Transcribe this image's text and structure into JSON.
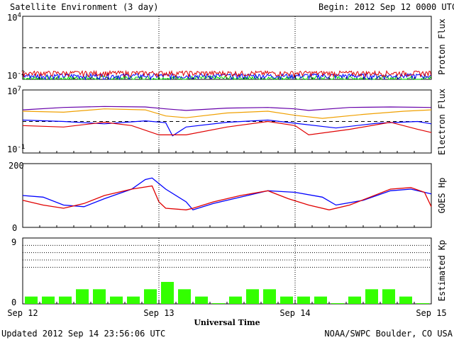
{
  "header": {
    "title": "Satellite Environment (3 day)",
    "begin": "Begin:  2012 Sep 12 0000 UTC"
  },
  "footer": {
    "updated": "Updated 2012 Sep 14 23:56:06 UTC",
    "credit": "NOAA/SWPC Boulder, CO USA"
  },
  "xaxis": {
    "label": "Universal Time",
    "ticks": [
      "Sep 12",
      "Sep 13",
      "Sep 14",
      "Sep 15"
    ]
  },
  "panels": {
    "proton": {
      "ylabel": "Proton Flux",
      "ytick_top": "10",
      "ytick_top_exp": "4",
      "ytick_bottom": "10",
      "ytick_bottom_exp": "-2"
    },
    "electron": {
      "ylabel": "Electron Flux",
      "ytick_top": "10",
      "ytick_top_exp": "7",
      "ytick_bottom": "10",
      "ytick_bottom_exp": "-1"
    },
    "hp": {
      "ylabel": "GOES Hp",
      "ytick_top": "200",
      "ytick_bottom": "0"
    },
    "kp": {
      "ylabel": "Estimated Kp",
      "ytick_top": "9",
      "ytick_bottom": "0"
    }
  },
  "colors": {
    "red": "#e00000",
    "blue": "#0000ff",
    "green": "#00e000",
    "orange": "#f0a000",
    "purple": "#6600aa",
    "kp": "#33ff00"
  },
  "chart_data": [
    {
      "type": "line",
      "title": "Proton Flux",
      "y_scale": "log",
      "ylim": [
        0.01,
        10000
      ],
      "x_range_days": [
        0,
        3
      ],
      "threshold": 10,
      "series": [
        {
          "color": "#e00000",
          "level": 0.04
        },
        {
          "color": "#0000ff",
          "level": 0.022
        },
        {
          "color": "#00e000",
          "level": 0.013
        }
      ]
    },
    {
      "type": "line",
      "title": "Electron Flux",
      "y_scale": "log",
      "ylim": [
        0.1,
        10000000
      ],
      "threshold": 1000,
      "series": [
        {
          "color": "#6600aa",
          "x": [
            0,
            0.3,
            0.6,
            0.9,
            1.05,
            1.2,
            1.5,
            1.8,
            2.0,
            2.1,
            2.4,
            2.7,
            3.0
          ],
          "y": [
            30000,
            60000,
            80000,
            70000,
            40000,
            25000,
            50000,
            60000,
            40000,
            25000,
            60000,
            70000,
            60000
          ]
        },
        {
          "color": "#f0a000",
          "x": [
            0,
            0.3,
            0.6,
            0.9,
            1.05,
            1.2,
            1.5,
            1.8,
            2.0,
            2.2,
            2.5,
            2.8,
            3.0
          ],
          "y": [
            20000,
            15000,
            40000,
            30000,
            5000,
            3000,
            12000,
            20000,
            6000,
            2500,
            8000,
            20000,
            30000
          ]
        },
        {
          "color": "#0000ff",
          "x": [
            0,
            0.3,
            0.6,
            0.9,
            1.05,
            1.1,
            1.2,
            1.5,
            1.8,
            2.0,
            2.3,
            2.6,
            2.9,
            3.0
          ],
          "y": [
            1500,
            1000,
            500,
            1200,
            700,
            15,
            200,
            800,
            1500,
            600,
            150,
            600,
            1000,
            500
          ]
        },
        {
          "color": "#e00000",
          "x": [
            0,
            0.3,
            0.6,
            0.8,
            1.0,
            1.2,
            1.5,
            1.8,
            2.0,
            2.1,
            2.4,
            2.7,
            2.9,
            3.0
          ],
          "y": [
            300,
            200,
            800,
            300,
            20,
            20,
            200,
            1000,
            300,
            20,
            100,
            800,
            100,
            40
          ]
        }
      ]
    },
    {
      "type": "line",
      "title": "GOES Hp",
      "ylim": [
        0,
        200
      ],
      "series": [
        {
          "color": "#0000ff",
          "x": [
            0,
            0.15,
            0.3,
            0.45,
            0.6,
            0.8,
            0.9,
            0.95,
            1.05,
            1.2,
            1.25,
            1.4,
            1.6,
            1.8,
            2.0,
            2.2,
            2.3,
            2.5,
            2.7,
            2.85,
            3.0
          ],
          "y": [
            100,
            95,
            70,
            65,
            90,
            120,
            150,
            155,
            120,
            80,
            55,
            75,
            95,
            115,
            110,
            95,
            70,
            85,
            115,
            120,
            105
          ]
        },
        {
          "color": "#e00000",
          "x": [
            0,
            0.15,
            0.3,
            0.45,
            0.6,
            0.8,
            0.95,
            1.0,
            1.05,
            1.2,
            1.25,
            1.4,
            1.6,
            1.8,
            1.95,
            2.1,
            2.25,
            2.4,
            2.55,
            2.7,
            2.85,
            2.95,
            3.0
          ],
          "y": [
            85,
            70,
            60,
            75,
            100,
            120,
            130,
            80,
            60,
            55,
            60,
            80,
            100,
            115,
            90,
            70,
            55,
            70,
            95,
            120,
            125,
            110,
            65
          ]
        }
      ]
    },
    {
      "type": "bar",
      "title": "Estimated Kp",
      "ylim": [
        0,
        9
      ],
      "threshold_lines": [
        5,
        6,
        7,
        8
      ],
      "values": [
        1,
        1,
        1,
        2,
        2,
        1,
        1,
        2,
        3,
        2,
        1,
        0,
        1,
        2,
        2,
        1,
        1,
        1,
        0,
        1,
        2,
        2,
        1,
        0
      ]
    }
  ]
}
